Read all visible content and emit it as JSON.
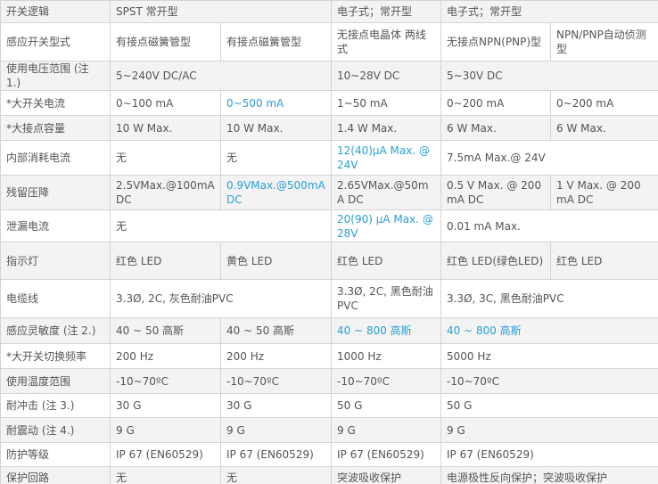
{
  "table": {
    "rows": [
      [
        "开关逻辑",
        "SPST 常开型",
        "电子式；常开型",
        "电子式；常开型"
      ],
      [
        "感应开关型式",
        "有接点磁簧管型",
        "有接点磁簧管型",
        "无接点电晶体 两线式",
        "无接点NPN(PNP)型",
        "NPN/PNP自动侦测型"
      ],
      [
        "使用电压范围 (注 1.)",
        "5~240V DC/AC",
        "10~28V DC",
        "5~30V DC"
      ],
      [
        "*大开关电流",
        "0~100 mA",
        "0~500 mA",
        "1~50 mA",
        "0~200 mA",
        "0~200 mA"
      ],
      [
        "*大接点容量",
        "10 W Max.",
        "10 W Max.",
        "1.4 W Max.",
        "6 W Max.",
        "6 W Max."
      ],
      [
        "内部消耗电流",
        "无",
        "无",
        "12(40)μA Max. @ 24V",
        "7.5mA Max.@ 24V"
      ],
      [
        "残留压降",
        "2.5VMax.@100mA DC",
        "0.9VMax.@500mA DC",
        "2.65VMax.@50mA DC",
        "0.5 V Max. @ 200 mA DC",
        "1 V Max. @ 200 mA DC"
      ],
      [
        "泄漏电流",
        "无",
        "20(90) μA Max. @ 28V",
        "0.01 mA Max."
      ],
      [
        "指示灯",
        "红色 LED",
        "黄色 LED",
        "红色 LED",
        "红色 LED(绿色LED)",
        "红色 LED"
      ],
      [
        "电缆线",
        "3.3Ø, 2C, 灰色耐油PVC",
        "3.3Ø, 2C, 黑色耐油PVC",
        "3.3Ø, 3C, 黑色耐油PVC"
      ],
      [
        "感应灵敏度 (注 2.)",
        "40 ~ 50 高斯",
        "40 ~ 50 高斯",
        "40 ~ 800 高斯",
        "40 ~ 800 高斯"
      ],
      [
        "*大开关切换频率",
        "200 Hz",
        "200 Hz",
        "1000 Hz",
        "5000 Hz"
      ],
      [
        "使用温度范围",
        "-10~70ºC",
        "-10~70ºC",
        "-10~70ºC",
        "-10~70ºC"
      ],
      [
        "耐冲击 (注 3.)",
        "30 G",
        "30 G",
        "50 G",
        "50 G"
      ],
      [
        "耐震动 (注 4.)",
        "9 G",
        "9 G",
        "9 G",
        "9 G"
      ],
      [
        "防护等级",
        "IP 67 (EN60529)",
        "IP 67 (EN60529)",
        "IP 67 (EN60529)",
        "IP 67 (EN60529)"
      ],
      [
        "保护回路",
        "无",
        "无",
        "突波吸收保护",
        "电源极性反向保护；突波吸收保护"
      ]
    ]
  }
}
